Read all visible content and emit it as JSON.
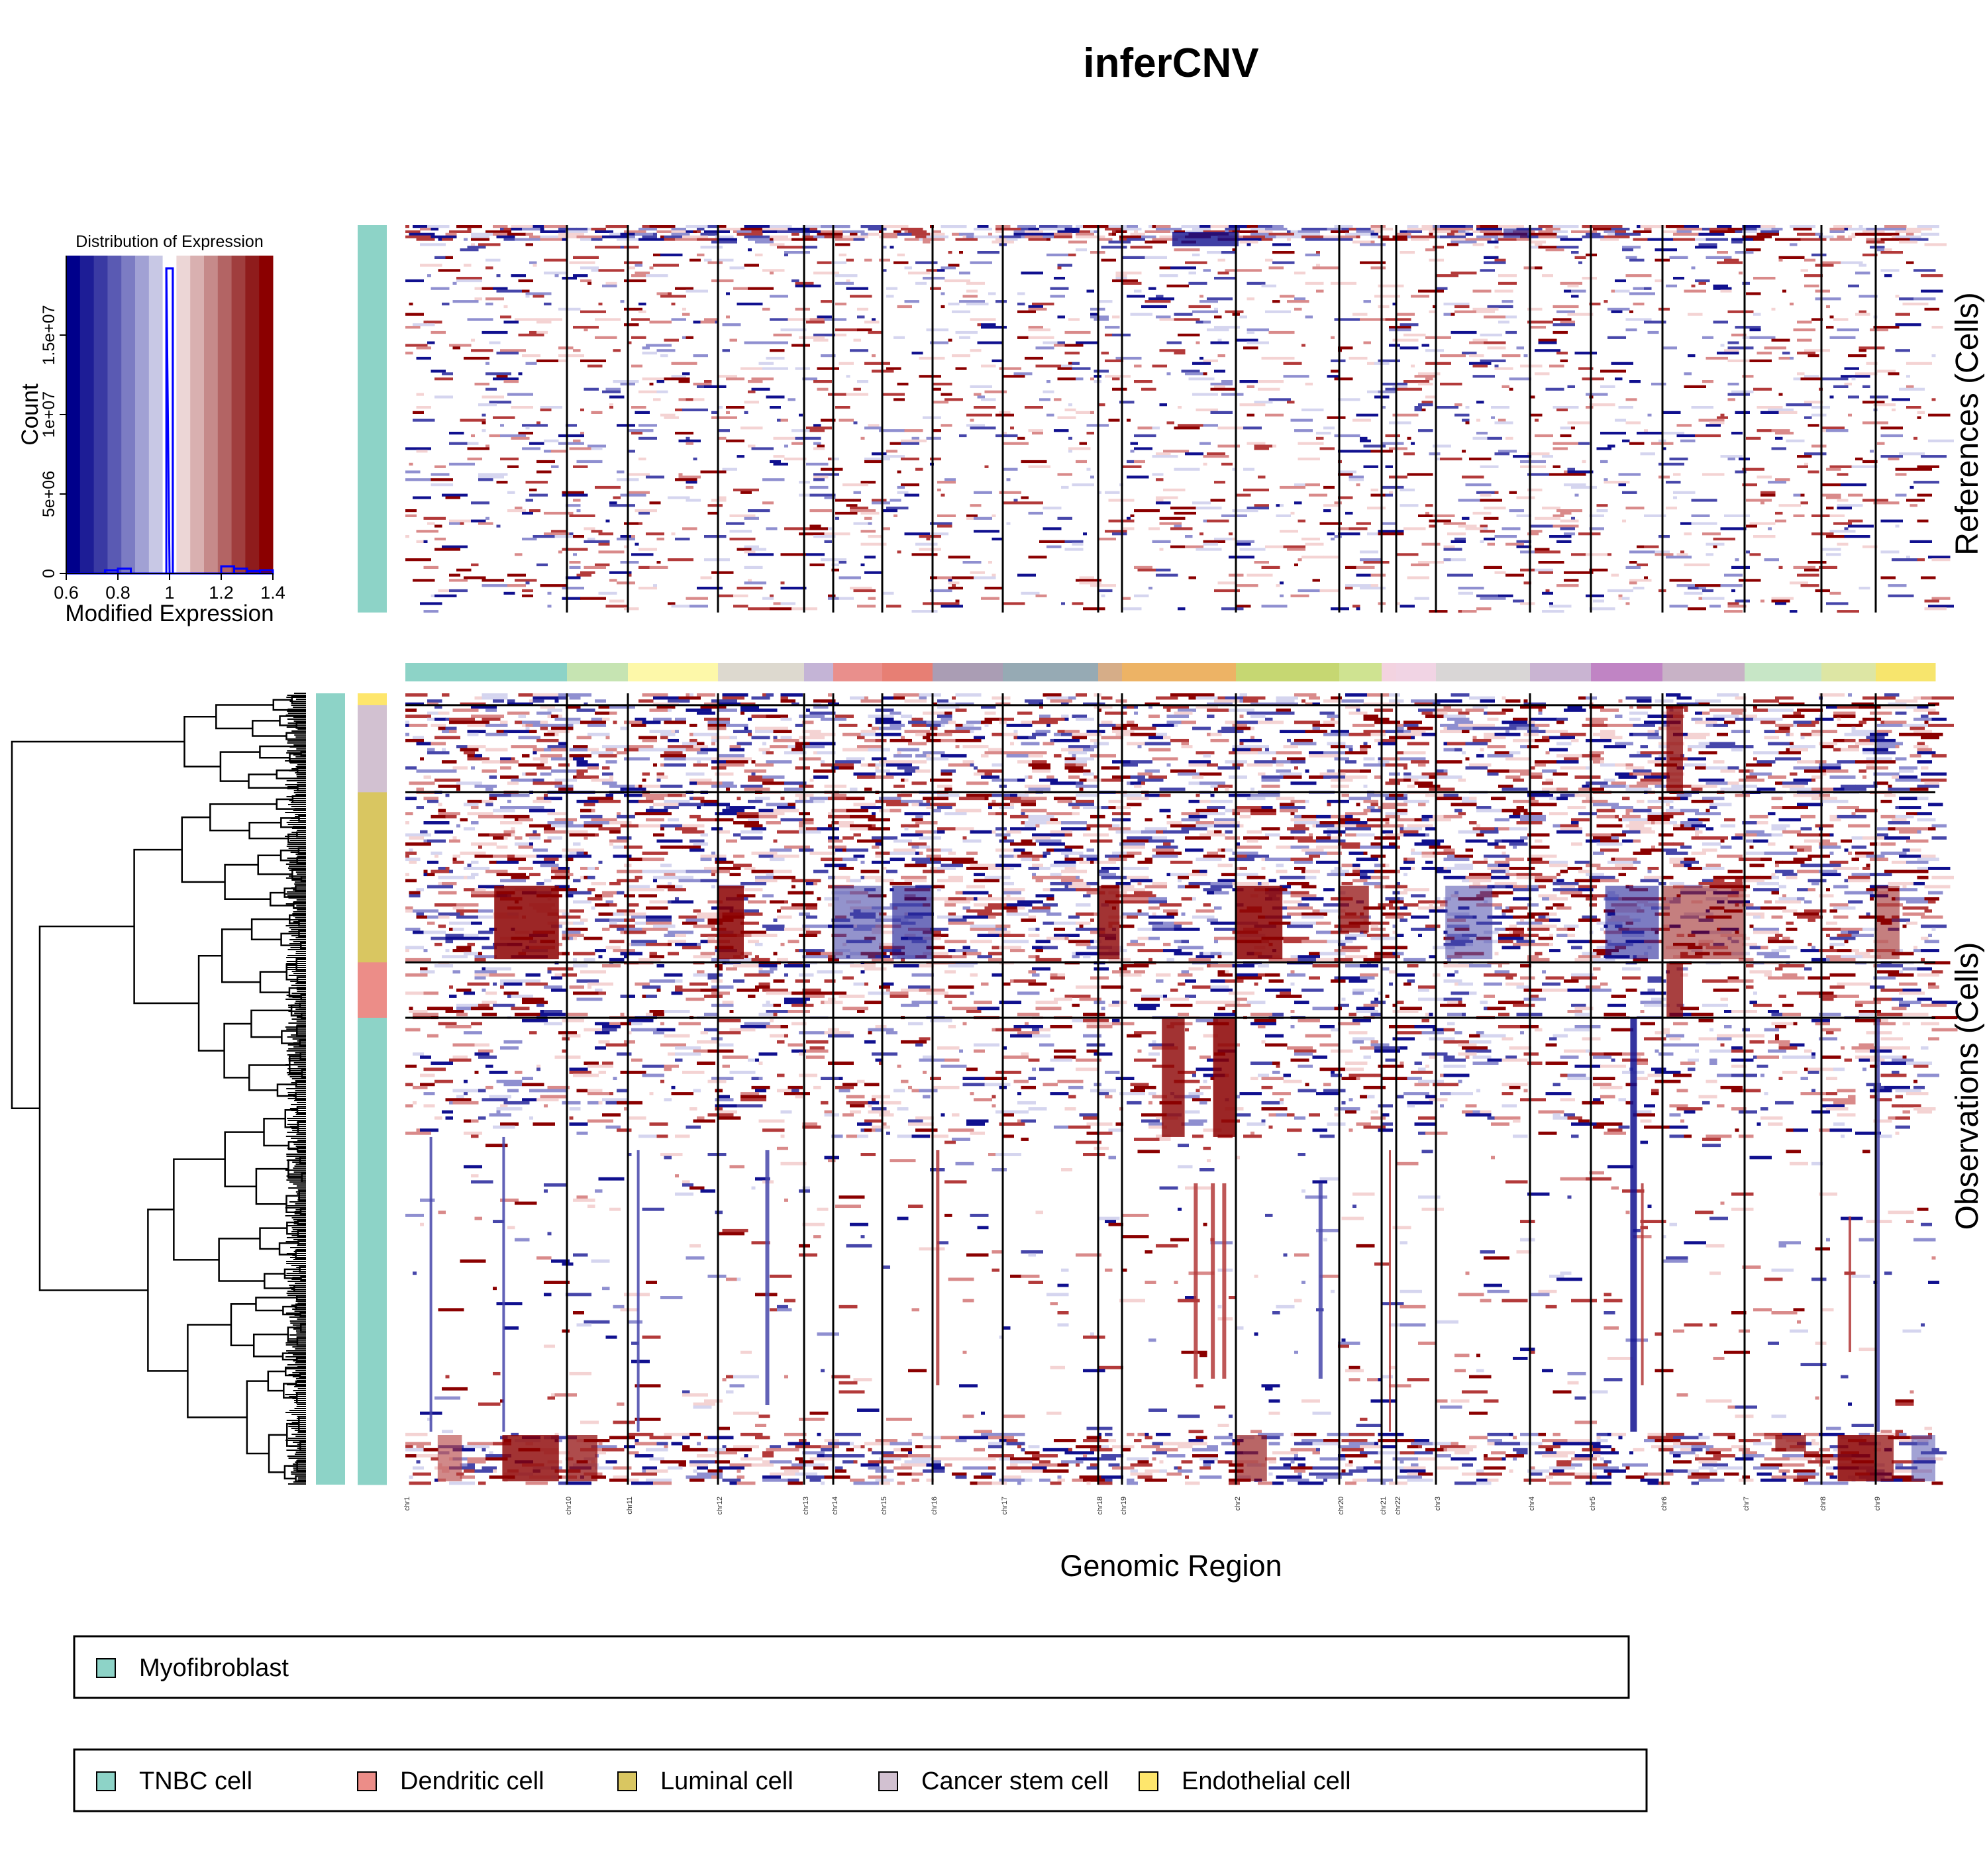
{
  "chart_data": {
    "type": "heatmap",
    "title": "inferCNV",
    "xlabel": "Genomic Region",
    "references_label": "References (Cells)",
    "observations_label": "Observations (Cells)",
    "chromosomes": [
      {
        "name": "chr1",
        "weight": 12.2,
        "color": "#8dd3c7"
      },
      {
        "name": "chr10",
        "weight": 4.6,
        "color": "#c6e4b2"
      },
      {
        "name": "chr11",
        "weight": 6.8,
        "color": "#fdf8a9"
      },
      {
        "name": "chr12",
        "weight": 6.5,
        "color": "#ddd9cf"
      },
      {
        "name": "chr13",
        "weight": 2.2,
        "color": "#c4b4d6"
      },
      {
        "name": "chr14",
        "weight": 3.7,
        "color": "#e98f8c"
      },
      {
        "name": "chr15",
        "weight": 3.8,
        "color": "#e77f74"
      },
      {
        "name": "chr16",
        "weight": 5.3,
        "color": "#aa9db4"
      },
      {
        "name": "chr17",
        "weight": 7.2,
        "color": "#96aab4"
      },
      {
        "name": "chr18",
        "weight": 1.8,
        "color": "#d6ad88"
      },
      {
        "name": "chr19",
        "weight": 8.6,
        "color": "#edb365"
      },
      {
        "name": "chr2",
        "weight": 7.8,
        "color": "#c6d772"
      },
      {
        "name": "chr20",
        "weight": 3.2,
        "color": "#cfe391"
      },
      {
        "name": "chr21",
        "weight": 1.1,
        "color": "#f3d3e0"
      },
      {
        "name": "chr22",
        "weight": 3.0,
        "color": "#f1d4e4"
      },
      {
        "name": "chr3",
        "weight": 7.1,
        "color": "#d9d6d6"
      },
      {
        "name": "chr4",
        "weight": 4.6,
        "color": "#c9b4d2"
      },
      {
        "name": "chr5",
        "weight": 5.4,
        "color": "#c084c4"
      },
      {
        "name": "chr6",
        "weight": 6.2,
        "color": "#c8b2c6"
      },
      {
        "name": "chr7",
        "weight": 5.8,
        "color": "#c7e6c6"
      },
      {
        "name": "chr8",
        "weight": 4.1,
        "color": "#dde6a4"
      },
      {
        "name": "chr9",
        "weight": 4.5,
        "color": "#f7e56d"
      }
    ],
    "histogram": {
      "title": "Distribution of Expression",
      "xlabel": "Modified Expression",
      "ylabel": "Count",
      "xlim": [
        0.6,
        1.4
      ],
      "ylim": [
        0,
        20000000
      ],
      "xticks": [
        "0.6",
        "0.8",
        "1",
        "1.2",
        "1.4"
      ],
      "yticks": [
        "0",
        "5e+06",
        "1e+07",
        "1.5e+07"
      ],
      "bins": [
        {
          "x": 0.625,
          "count": 0
        },
        {
          "x": 0.675,
          "count": 0
        },
        {
          "x": 0.725,
          "count": 0
        },
        {
          "x": 0.775,
          "count": 200000
        },
        {
          "x": 0.825,
          "count": 300000
        },
        {
          "x": 0.875,
          "count": 0
        },
        {
          "x": 0.925,
          "count": 0
        },
        {
          "x": 0.975,
          "count": 0
        },
        {
          "x": 1.0,
          "count": 19200000
        },
        {
          "x": 1.025,
          "count": 0
        },
        {
          "x": 1.075,
          "count": 0
        },
        {
          "x": 1.125,
          "count": 0
        },
        {
          "x": 1.175,
          "count": 0
        },
        {
          "x": 1.225,
          "count": 450000
        },
        {
          "x": 1.275,
          "count": 300000
        },
        {
          "x": 1.325,
          "count": 150000
        },
        {
          "x": 1.375,
          "count": 200000
        }
      ]
    },
    "reference_groups": [
      {
        "name": "Myofibroblast",
        "color": "#8dd3c7"
      }
    ],
    "observation_groups": [
      {
        "name": "Endothelial cell",
        "color": "#fee66c",
        "fraction": 0.015
      },
      {
        "name": "Cancer stem cell",
        "color": "#d2c1d1",
        "fraction": 0.11
      },
      {
        "name": "Luminal cell",
        "color": "#d9c661",
        "fraction": 0.215
      },
      {
        "name": "Dendritic cell",
        "color": "#ec8d88",
        "fraction": 0.07
      },
      {
        "name": "TNBC cell",
        "color": "#8dd3c7",
        "fraction": 0.59
      }
    ],
    "legend_references": [
      {
        "name": "Myofibroblast",
        "color": "#8dd3c7"
      }
    ],
    "legend_observations": [
      {
        "name": "TNBC cell",
        "color": "#8dd3c7"
      },
      {
        "name": "Dendritic cell",
        "color": "#ec8d88"
      },
      {
        "name": "Luminal cell",
        "color": "#d9c661"
      },
      {
        "name": "Cancer stem cell",
        "color": "#d2c1d1"
      },
      {
        "name": "Endothelial cell",
        "color": "#fee66c"
      }
    ],
    "color_scale": [
      "#00008b",
      "#ffffff",
      "#8b0000"
    ]
  }
}
